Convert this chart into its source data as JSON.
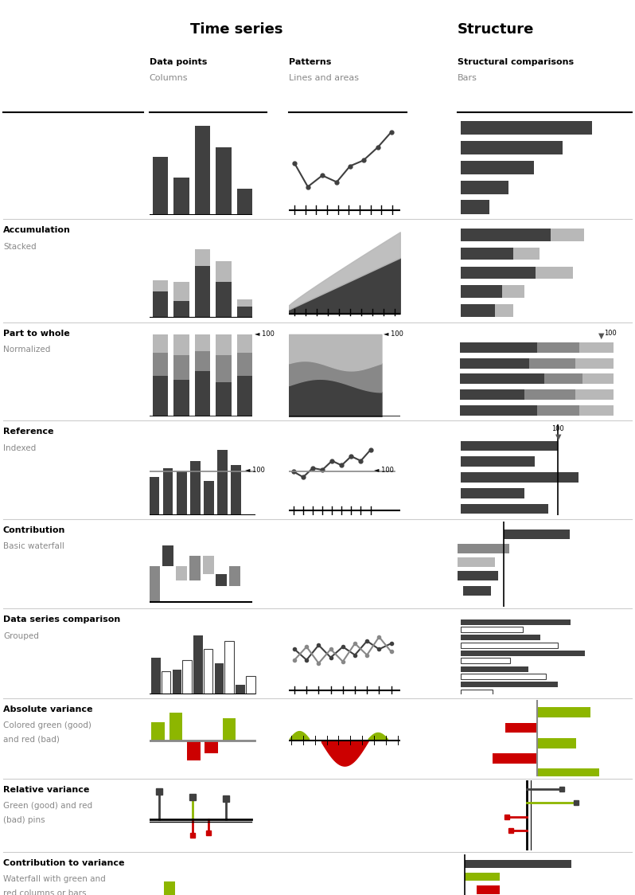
{
  "title_time_series": "Time series",
  "title_structure": "Structure",
  "col1_bold": "Data points",
  "col1_sub": "Columns",
  "col2_bold": "Patterns",
  "col2_sub": "Lines and areas",
  "col3_bold": "Structural comparisons",
  "col3_sub": "Bars",
  "row_labels_bold": [
    "",
    "Accumulation",
    "Part to whole",
    "Reference",
    "Contribution",
    "Data series comparison",
    "Absolute variance",
    "Relative variance",
    "Contribution to variance"
  ],
  "row_labels_sub": [
    "",
    "Stacked",
    "Normalized",
    "Indexed",
    "Basic waterfall",
    "Grouped",
    "Colored green (good)\nand red (bad)",
    "Green (good) and red\n(bad) pins",
    "Waterfall with green and\nred columns or bars"
  ],
  "dark_gray": "#404040",
  "mid_gray": "#888888",
  "light_gray": "#b8b8b8",
  "green_color": "#8db600",
  "red_color": "#cc0000",
  "background": "#ffffff"
}
